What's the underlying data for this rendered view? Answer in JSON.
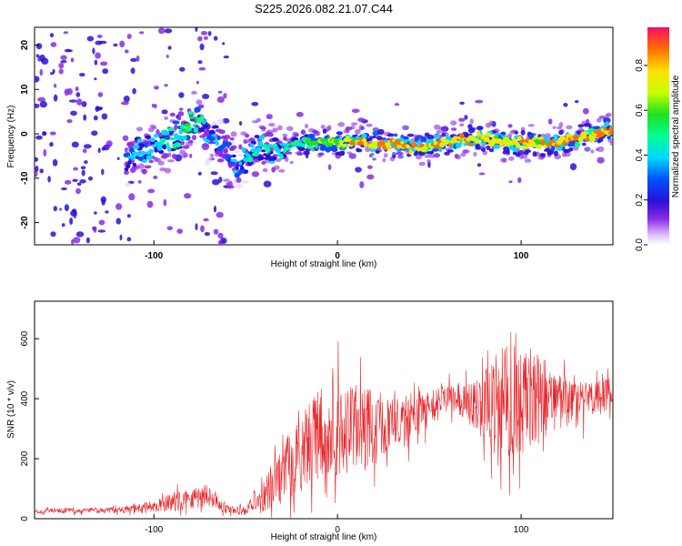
{
  "title": "S225.2026.082.21.07.C44",
  "chart_data": [
    {
      "type": "heatmap",
      "title": "S225.2026.082.21.07.C44",
      "xlabel": "Height of straight line (km)",
      "ylabel": "Frequency (Hz)",
      "xlim": [
        -165,
        150
      ],
      "ylim": [
        -25,
        24
      ],
      "xticks": [
        "-100",
        "0",
        "100"
      ],
      "xtick_values": [
        -100,
        0,
        100
      ],
      "yticks": [
        "-20",
        "-10",
        "0",
        "10",
        "20"
      ],
      "ytick_values": [
        -20,
        -10,
        0,
        10,
        20
      ],
      "colorbar": {
        "label": "Normalized spectral amplitude",
        "ticks": [
          "0.0",
          "0.2",
          "0.4",
          "0.6",
          "0.8"
        ],
        "tick_values": [
          0.0,
          0.2,
          0.4,
          0.6,
          0.8
        ],
        "range": [
          0,
          0.97
        ]
      },
      "ridge": {
        "x": [
          -115,
          -100,
          -85,
          -78,
          -70,
          -60,
          -55,
          -45,
          -35,
          -20,
          -10,
          0,
          20,
          40,
          60,
          75,
          80,
          90,
          100,
          120,
          140,
          150
        ],
        "y": [
          -5,
          -3,
          0,
          3,
          0,
          -4,
          -8,
          -3,
          -4,
          -2,
          -2,
          -2,
          -2,
          -3,
          -2,
          -1,
          -1,
          -2,
          -2,
          -2,
          0,
          1
        ],
        "amplitude": [
          0.35,
          0.4,
          0.45,
          0.55,
          0.3,
          0.25,
          0.3,
          0.4,
          0.4,
          0.5,
          0.6,
          0.7,
          0.85,
          0.85,
          0.8,
          0.8,
          0.7,
          0.75,
          0.75,
          0.8,
          0.85,
          0.8
        ]
      }
    },
    {
      "type": "line",
      "xlabel": "Height of straight line (km)",
      "ylabel": "SNR (10 * v/v)",
      "xlim": [
        -165,
        150
      ],
      "ylim": [
        0,
        725
      ],
      "xticks": [
        "-100",
        "0",
        "100"
      ],
      "xtick_values": [
        -100,
        0,
        100
      ],
      "yticks": [
        "0",
        "200",
        "400",
        "600"
      ],
      "ytick_values": [
        0,
        200,
        400,
        600
      ],
      "color": "#e8262a",
      "envelope": {
        "x": [
          -165,
          -120,
          -100,
          -80,
          -70,
          -60,
          -50,
          -40,
          -30,
          -20,
          -10,
          0,
          10,
          20,
          30,
          40,
          50,
          60,
          70,
          80,
          90,
          100,
          110,
          120,
          130,
          140,
          150
        ],
        "mean": [
          25,
          28,
          40,
          70,
          80,
          30,
          25,
          80,
          150,
          220,
          280,
          300,
          300,
          310,
          330,
          340,
          360,
          410,
          390,
          370,
          390,
          390,
          400,
          390,
          380,
          400,
          420
        ],
        "spread": [
          8,
          10,
          20,
          40,
          40,
          15,
          15,
          60,
          100,
          130,
          150,
          170,
          150,
          120,
          100,
          80,
          60,
          50,
          60,
          120,
          200,
          180,
          150,
          100,
          80,
          60,
          50
        ]
      }
    }
  ]
}
